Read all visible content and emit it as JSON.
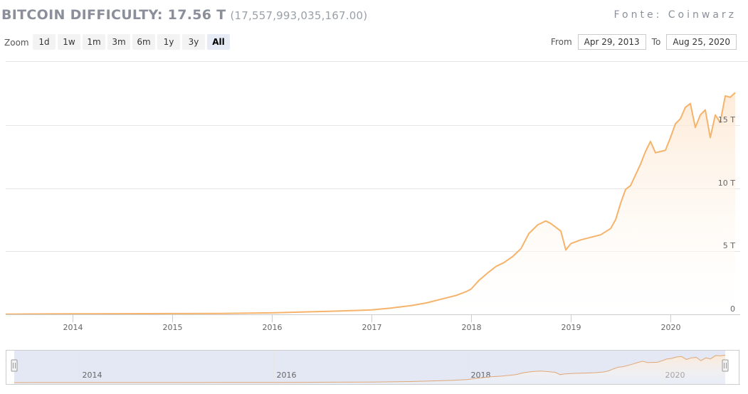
{
  "header": {
    "title": "BITCOIN DIFFICULTY: 17.56 T",
    "subtitle": "(17,557,993,035,167.00)",
    "source": "Fonte: Coinwarz"
  },
  "toolbar": {
    "zoom_label": "Zoom",
    "zoom_buttons": [
      "1d",
      "1w",
      "1m",
      "3m",
      "6m",
      "1y",
      "3y",
      "All"
    ],
    "active_zoom": "All",
    "from_label": "From",
    "from_value": "Apr 29, 2013",
    "to_label": "To",
    "to_value": "Aug 25, 2020"
  },
  "colors": {
    "line": "#f5b36b",
    "fill_top": "#fde9d4",
    "grid": "#e6e6e6",
    "navigator_mask": "#ccd6eb"
  },
  "chart_data": {
    "type": "area",
    "title": "BITCOIN DIFFICULTY: 17.56 T",
    "xlabel": "",
    "ylabel": "",
    "x_unit": "year",
    "xlim": [
      2013.33,
      2020.65
    ],
    "ylim": [
      0,
      20
    ],
    "y_ticks": [
      0,
      5,
      10,
      15
    ],
    "y_tick_labels": [
      "0",
      "5 T",
      "10 T",
      "15 T"
    ],
    "x_ticks": [
      2014,
      2015,
      2016,
      2017,
      2018,
      2019,
      2020
    ],
    "x_tick_labels": [
      "2014",
      "2015",
      "2016",
      "2017",
      "2018",
      "2019",
      "2020"
    ],
    "navigator_ticks": [
      2014,
      2016,
      2018,
      2020
    ],
    "navigator_tick_labels": [
      "2014",
      "2016",
      "2018",
      "2020"
    ],
    "grid": true,
    "series": [
      {
        "x": [
          2013.33,
          2013.6,
          2014.0,
          2014.5,
          2015.0,
          2015.5,
          2016.0,
          2016.3,
          2016.6,
          2017.0,
          2017.2,
          2017.4,
          2017.55,
          2017.7,
          2017.85,
          2017.95,
          2018.0,
          2018.08,
          2018.17,
          2018.25,
          2018.33,
          2018.42,
          2018.5,
          2018.58,
          2018.67,
          2018.75,
          2018.8,
          2018.9,
          2018.95,
          2019.0,
          2019.1,
          2019.2,
          2019.3,
          2019.4,
          2019.45,
          2019.5,
          2019.55,
          2019.6,
          2019.7,
          2019.75,
          2019.8,
          2019.85,
          2019.9,
          2019.95,
          2020.0,
          2020.05,
          2020.1,
          2020.15,
          2020.2,
          2020.25,
          2020.3,
          2020.35,
          2020.4,
          2020.45,
          2020.5,
          2020.55,
          2020.6,
          2020.65
        ],
        "values": [
          0.01,
          0.03,
          0.04,
          0.05,
          0.06,
          0.07,
          0.12,
          0.18,
          0.25,
          0.35,
          0.5,
          0.7,
          0.9,
          1.2,
          1.5,
          1.8,
          2.0,
          2.7,
          3.3,
          3.8,
          4.1,
          4.6,
          5.2,
          6.4,
          7.1,
          7.4,
          7.2,
          6.6,
          5.1,
          5.6,
          5.9,
          6.1,
          6.3,
          6.8,
          7.5,
          8.8,
          9.9,
          10.2,
          11.9,
          12.9,
          13.7,
          12.8,
          12.9,
          13.0,
          14.0,
          15.1,
          15.5,
          16.4,
          16.7,
          14.8,
          15.8,
          16.2,
          14.0,
          15.8,
          15.2,
          17.3,
          17.2,
          17.56
        ]
      }
    ]
  }
}
